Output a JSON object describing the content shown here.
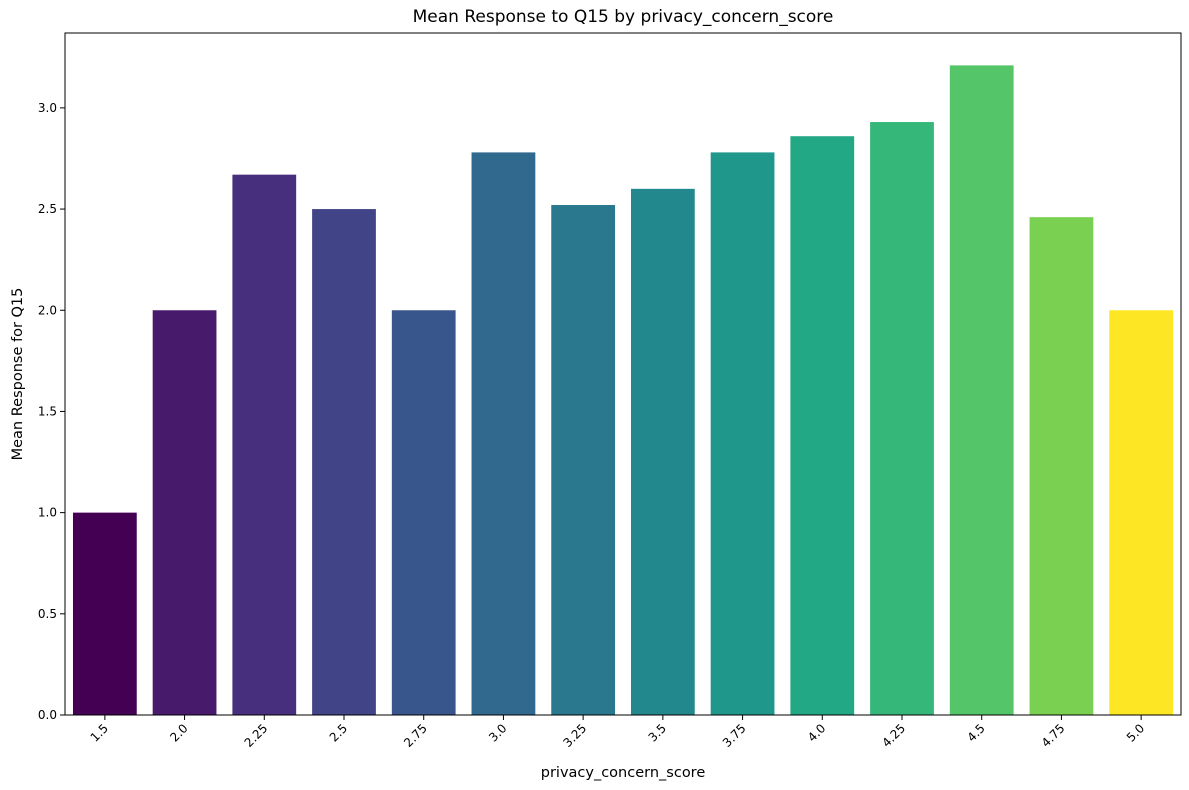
{
  "chart_data": {
    "type": "bar",
    "title": "Mean Response to Q15 by privacy_concern_score",
    "xlabel": "privacy_concern_score",
    "ylabel": "Mean Response for Q15",
    "categories": [
      "1.5",
      "2.0",
      "2.25",
      "2.5",
      "2.75",
      "3.0",
      "3.25",
      "3.5",
      "3.75",
      "4.0",
      "4.25",
      "4.5",
      "4.75",
      "5.0"
    ],
    "values": [
      1.0,
      2.0,
      2.67,
      2.5,
      2.0,
      2.78,
      2.52,
      2.6,
      2.78,
      2.86,
      2.93,
      3.21,
      2.46,
      2.0
    ],
    "colors": [
      "#440154",
      "#481a6c",
      "#472f7d",
      "#414487",
      "#39568c",
      "#31688e",
      "#2a788e",
      "#23888e",
      "#1f988b",
      "#22a884",
      "#35b779",
      "#54c568",
      "#7ad151",
      "#fde725"
    ],
    "ylim": [
      0,
      3.37
    ],
    "yticks": [
      "0.0",
      "0.5",
      "1.0",
      "1.5",
      "2.0",
      "2.5",
      "3.0"
    ],
    "grid": false,
    "legend": "none"
  }
}
